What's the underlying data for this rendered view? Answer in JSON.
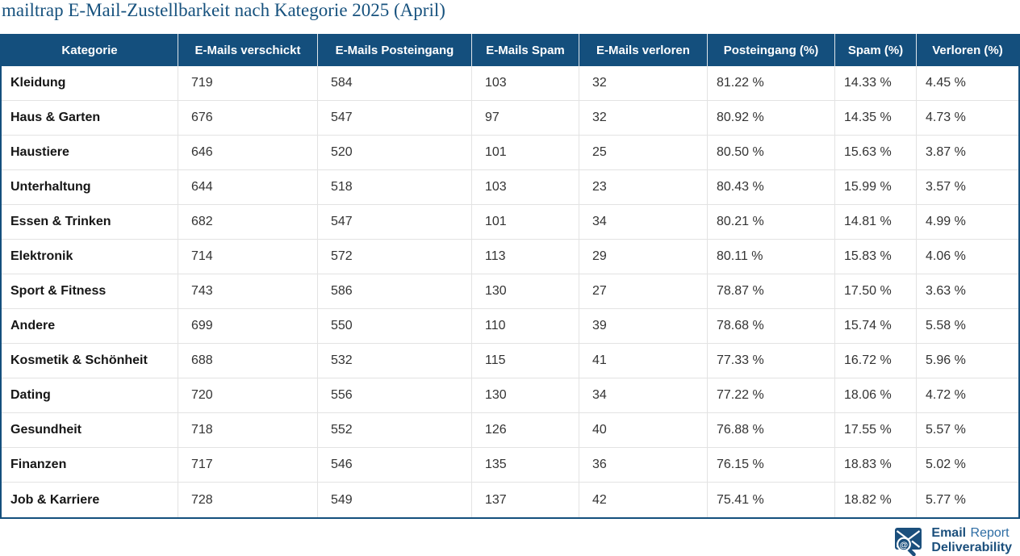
{
  "page": {
    "title": "mailtrap E-Mail-Zustellbarkeit nach Kategorie 2025 (April)"
  },
  "chart_data": {
    "type": "table",
    "title": "mailtrap E-Mail-Zustellbarkeit nach Kategorie 2025 (April)",
    "columns": [
      "Kategorie",
      "E-Mails verschickt",
      "E-Mails Posteingang",
      "E-Mails Spam",
      "E-Mails verloren",
      "Posteingang (%)",
      "Spam (%)",
      "Verloren (%)"
    ],
    "rows": [
      [
        "Kleidung",
        "719",
        "584",
        "103",
        "32",
        "81.22 %",
        "14.33 %",
        "4.45 %"
      ],
      [
        "Haus & Garten",
        "676",
        "547",
        "97",
        "32",
        "80.92 %",
        "14.35 %",
        "4.73 %"
      ],
      [
        "Haustiere",
        "646",
        "520",
        "101",
        "25",
        "80.50 %",
        "15.63 %",
        "3.87 %"
      ],
      [
        "Unterhaltung",
        "644",
        "518",
        "103",
        "23",
        "80.43 %",
        "15.99 %",
        "3.57 %"
      ],
      [
        "Essen & Trinken",
        "682",
        "547",
        "101",
        "34",
        "80.21 %",
        "14.81 %",
        "4.99 %"
      ],
      [
        "Elektronik",
        "714",
        "572",
        "113",
        "29",
        "80.11 %",
        "15.83 %",
        "4.06 %"
      ],
      [
        "Sport & Fitness",
        "743",
        "586",
        "130",
        "27",
        "78.87 %",
        "17.50 %",
        "3.63 %"
      ],
      [
        "Andere",
        "699",
        "550",
        "110",
        "39",
        "78.68 %",
        "15.74 %",
        "5.58 %"
      ],
      [
        "Kosmetik & Schönheit",
        "688",
        "532",
        "115",
        "41",
        "77.33 %",
        "16.72 %",
        "5.96 %"
      ],
      [
        "Dating",
        "720",
        "556",
        "130",
        "34",
        "77.22 %",
        "18.06 %",
        "4.72 %"
      ],
      [
        "Gesundheit",
        "718",
        "552",
        "126",
        "40",
        "76.88 %",
        "17.55 %",
        "5.57 %"
      ],
      [
        "Finanzen",
        "717",
        "546",
        "135",
        "36",
        "76.15 %",
        "18.83 %",
        "5.02 %"
      ],
      [
        "Job & Karriere",
        "728",
        "549",
        "137",
        "42",
        "75.41 %",
        "18.82 %",
        "5.77 %"
      ]
    ],
    "legend": false,
    "grid": true
  },
  "logo": {
    "line1_bold": "Email",
    "line1_rest": "Report",
    "line2": "Deliverability",
    "at_symbol": "@",
    "icon": "envelope-magnifier-at-icon"
  },
  "colors": {
    "accent_blue": "#144f7d",
    "logo_dark_blue": "#1b4f7c",
    "logo_light_blue": "#2e6da4",
    "row_border": "#e3e3e3",
    "body_text": "#333333",
    "header_text": "#ffffff"
  }
}
